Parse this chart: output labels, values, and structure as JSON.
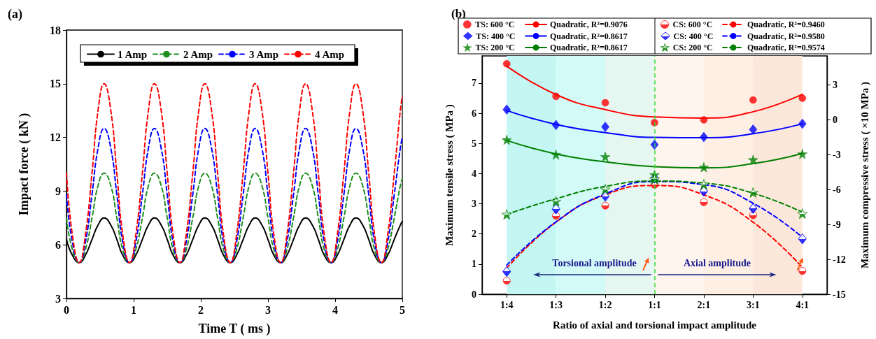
{
  "chart_data": [
    {
      "type": "line",
      "title": "(a)",
      "xlabel": "Time T ( ms )",
      "ylabel": "Impact force ( kN )",
      "x": [
        0,
        0.09,
        0.19,
        0.28,
        0.38,
        0.47,
        0.56,
        0.66,
        0.75,
        0.84,
        0.94,
        1.03,
        1.13,
        1.22,
        1.31,
        1.41,
        1.5,
        1.59,
        1.69,
        1.78,
        1.88,
        1.97,
        2.06,
        2.16,
        2.25,
        2.34,
        2.44,
        2.53,
        2.63,
        2.72,
        2.81,
        2.91,
        3,
        3.09,
        3.19,
        3.28,
        3.38,
        3.47,
        3.56,
        3.66,
        3.75,
        3.84,
        3.94,
        4.03,
        4.13,
        4.22,
        4.31,
        4.41,
        4.5,
        4.59,
        4.69,
        4.78,
        4.88,
        4.97,
        5
      ],
      "xlim": [
        0,
        5
      ],
      "xticks": [
        0,
        1,
        2,
        3,
        4,
        5
      ],
      "ylim": [
        3,
        18
      ],
      "yticks": [
        3,
        6,
        9,
        12,
        15,
        18
      ],
      "legend": "top",
      "grid": false,
      "marker": "none",
      "series": [
        {
          "name": "1 Amp",
          "color": "#000000",
          "line_style": "solid",
          "values": [
            6.3,
            5.4,
            5,
            5.4,
            6.3,
            7.1,
            7.5,
            7.1,
            6.3,
            5.4,
            5,
            5.4,
            6.3,
            7.1,
            7.5,
            7.1,
            6.3,
            5.4,
            5,
            5.4,
            6.3,
            7.1,
            7.5,
            7.1,
            6.3,
            5.4,
            5,
            5.4,
            6.3,
            7.1,
            7.5,
            7.1,
            6.3,
            5.4,
            5,
            5.4,
            6.3,
            7.1,
            7.5,
            7.1,
            6.3,
            5.4,
            5,
            5.4,
            6.3,
            7.1,
            7.5,
            7.1,
            6.3,
            5.4,
            5,
            5.4,
            6.3,
            7.1,
            7.3
          ]
        },
        {
          "name": "2 Amp",
          "color": "#1f8f1f",
          "line_style": "dashed",
          "values": [
            7.5,
            5.7,
            5,
            5.7,
            7.5,
            9.3,
            10,
            9.3,
            7.5,
            5.7,
            5,
            5.7,
            7.5,
            9.3,
            10,
            9.3,
            7.5,
            5.7,
            5,
            5.7,
            7.5,
            9.3,
            10,
            9.3,
            7.5,
            5.7,
            5,
            5.7,
            7.5,
            9.3,
            10,
            9.3,
            7.5,
            5.7,
            5,
            5.7,
            7.5,
            9.3,
            10,
            9.3,
            7.5,
            5.7,
            5,
            5.7,
            7.5,
            9.3,
            10,
            9.3,
            7.5,
            5.7,
            5,
            5.7,
            7.5,
            9.3,
            9.7
          ]
        },
        {
          "name": "3 Amp",
          "color": "#0000ff",
          "line_style": "dashed",
          "values": [
            8.8,
            6.1,
            5,
            6.1,
            8.8,
            11.4,
            12.5,
            11.4,
            8.8,
            6.1,
            5,
            6.1,
            8.8,
            11.4,
            12.5,
            11.4,
            8.8,
            6.1,
            5,
            6.1,
            8.8,
            11.4,
            12.5,
            11.4,
            8.8,
            6.1,
            5,
            6.1,
            8.8,
            11.4,
            12.5,
            11.4,
            8.8,
            6.1,
            5,
            6.1,
            8.8,
            11.4,
            12.5,
            11.4,
            8.8,
            6.1,
            5,
            6.1,
            8.8,
            11.4,
            12.5,
            11.4,
            8.8,
            6.1,
            5,
            6.1,
            8.8,
            11.4,
            12
          ]
        },
        {
          "name": "4 Amp",
          "color": "#ff0000",
          "line_style": "dashed",
          "values": [
            10,
            6.5,
            5,
            6.5,
            10,
            13.5,
            15,
            13.5,
            10,
            6.5,
            5,
            6.5,
            10,
            13.5,
            15,
            13.5,
            10,
            6.5,
            5,
            6.5,
            10,
            13.5,
            15,
            13.5,
            10,
            6.5,
            5,
            6.5,
            10,
            13.5,
            15,
            13.5,
            10,
            6.5,
            5,
            6.5,
            10,
            13.5,
            15,
            13.5,
            10,
            6.5,
            5,
            6.5,
            10,
            13.5,
            15,
            13.5,
            10,
            6.5,
            5,
            6.5,
            10,
            13.5,
            14.3
          ]
        }
      ]
    },
    {
      "type": "scatter",
      "title": "(b)",
      "xlabel": "Ratio of axial and torsional impact amplitude",
      "ylabel": "Maximum tensile stress ( MPa )",
      "y2label": "Maximum compressive stress ( ×10 MPa )",
      "categories": [
        "1:4",
        "1:3",
        "1:2",
        "1:1",
        "2:1",
        "3:1",
        "4:1"
      ],
      "ylim": [
        0,
        7.9
      ],
      "yticks": [
        0,
        1,
        2,
        3,
        4,
        5,
        6,
        7
      ],
      "y2lim": [
        -15,
        5.5
      ],
      "y2ticks": [
        -15,
        -12,
        -9,
        -6,
        -3,
        0,
        3
      ],
      "legend": "top",
      "grid": false,
      "series": [
        {
          "name": "TS: 600 °C",
          "color": "#ff0000",
          "marker": "circle",
          "values": [
            7.64,
            6.56,
            6.35,
            5.69,
            5.78,
            6.44,
            6.5
          ]
        },
        {
          "type": "line",
          "name": "Quadratic, R²=0.9076",
          "color": "#ff0000",
          "line_style": "solid",
          "values": [
            7.56,
            6.62,
            6.12,
            5.88,
            5.84,
            6.05,
            6.63
          ]
        },
        {
          "name": "CS: 600 °C",
          "color": "#ff0000",
          "marker": "circle",
          "axis": "y2",
          "values": [
            -13.83,
            -8.25,
            -7.38,
            -5.58,
            -7.08,
            -8.2,
            -12.99
          ]
        },
        {
          "type": "line",
          "name": "Quadratic, R²=0.9460",
          "color": "#ff0000",
          "line_style": "dashed",
          "axis": "y2",
          "values": [
            -12.75,
            -8.8,
            -6.45,
            -5.65,
            -6.45,
            -8.8,
            -12.7
          ]
        },
        {
          "name": "TS: 400 °C",
          "color": "#0000ff",
          "marker": "diamond",
          "values": [
            6.12,
            5.61,
            5.55,
            4.96,
            5.21,
            5.46,
            5.65
          ]
        },
        {
          "type": "line",
          "name": "Quadratic, R²=0.8617",
          "color": "#0000ff",
          "line_style": "solid",
          "values": [
            6.09,
            5.63,
            5.36,
            5.2,
            5.19,
            5.32,
            5.65
          ]
        },
        {
          "name": "CS: 400 °C",
          "color": "#0000ff",
          "marker": "diamond",
          "axis": "y2",
          "values": [
            -13.04,
            -7.66,
            -6.57,
            -5.02,
            -6.14,
            -7.62,
            -10.23
          ]
        },
        {
          "type": "line",
          "name": "Quadratic, R²=0.9580",
          "color": "#0000ff",
          "line_style": "dashed",
          "axis": "y2",
          "values": [
            -12.5,
            -8.77,
            -6.37,
            -5.3,
            -5.57,
            -7.17,
            -10.1
          ]
        },
        {
          "name": "TS: 200 °C",
          "color": "#008000",
          "marker": "star",
          "values": [
            5.12,
            4.63,
            4.56,
            3.96,
            4.21,
            4.46,
            4.65
          ]
        },
        {
          "type": "line",
          "name": "Quadratic, R²=0.8617",
          "color": "#008000",
          "line_style": "solid",
          "values": [
            5.1,
            4.65,
            4.39,
            4.23,
            4.19,
            4.33,
            4.67
          ]
        },
        {
          "name": "CS: 200 °C",
          "color": "#008000",
          "marker": "star",
          "axis": "y2",
          "values": [
            -8.13,
            -7.01,
            -5.96,
            -5.1,
            -5.54,
            -6.24,
            -8.06
          ]
        },
        {
          "type": "line",
          "name": "Quadratic, R²=0.9574",
          "color": "#008000",
          "line_style": "dashed",
          "axis": "y2",
          "values": [
            -8.13,
            -6.78,
            -5.72,
            -5.26,
            -5.44,
            -6.31,
            -7.94
          ]
        }
      ],
      "ref_lines": [
        {
          "axis": "x",
          "value": "1:1",
          "color": "#33dd33",
          "line_style": "dashed"
        }
      ],
      "bands": [
        {
          "axis": "x",
          "from": "1:4",
          "to": "1:3",
          "color": "#c4f7f4"
        },
        {
          "axis": "x",
          "from": "1:3",
          "to": "1:2",
          "color": "#d2fbf8"
        },
        {
          "axis": "x",
          "from": "1:2",
          "to": "1:1",
          "color": "#e6f6f0"
        },
        {
          "axis": "x",
          "from": "1:1",
          "to": "2:1",
          "color": "#fdf5ee"
        },
        {
          "axis": "x",
          "from": "2:1",
          "to": "3:1",
          "color": "#fdefe4"
        },
        {
          "axis": "x",
          "from": "3:1",
          "to": "4:1",
          "color": "#fbe8da"
        }
      ],
      "annotations": [
        "Torsional amplitude",
        "Axial amplitude"
      ]
    }
  ]
}
